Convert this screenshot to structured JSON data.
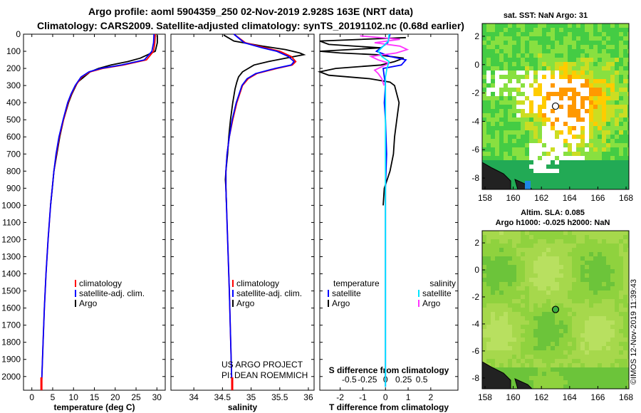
{
  "title_line1": "Argo profile: aoml 5904359_250 02-Nov-2019 2.928S 163E (NRT data)",
  "title_line2": "Climatology: CARS2009. Satellite-adjusted climatology: synTS_20191102.nc (0.68d earlier)",
  "sst_title": "sat. SST: NaN Argo: 31",
  "sla_title_1": "Altim. SLA: 0.085",
  "sla_title_2": "Argo h1000: -0.025 h2000: NaN",
  "timestamp": "©IMOS 12-Nov-2019 11:39:43",
  "credit_1": "US ARGO PROJECT",
  "credit_2": "PI: DEAN ROEMMICH",
  "depth_ticks": [
    "0",
    "100",
    "200",
    "300",
    "400",
    "500",
    "600",
    "700",
    "800",
    "900",
    "1000",
    "1100",
    "1200",
    "1300",
    "1400",
    "1500",
    "1600",
    "1700",
    "1800",
    "1900",
    "2000"
  ],
  "colors": {
    "climatology": "#ff0000",
    "satellite": "#0000ff",
    "argo": "#000000",
    "salinity_satellite": "#00e5ff",
    "salinity_argo": "#ff33ff"
  },
  "chart_data": [
    {
      "type": "line",
      "id": "temperature",
      "xlabel": "temperature (deg C)",
      "ylabel": "depth",
      "xlim": [
        -2,
        32
      ],
      "ylim": [
        2080,
        0
      ],
      "x_ticks": [
        "0",
        "5",
        "10",
        "15",
        "20",
        "25",
        "30"
      ],
      "x_tick_values": [
        0,
        5,
        10,
        15,
        20,
        25,
        30
      ],
      "legend": [
        "climatology",
        "satellite-adj. clim.",
        "Argo"
      ],
      "series": [
        {
          "name": "climatology",
          "depth": [
            0,
            50,
            100,
            150,
            180,
            200,
            220,
            250,
            300,
            350,
            400,
            500,
            600,
            700,
            800,
            900,
            1000,
            1200,
            1400,
            1600,
            1800,
            2000,
            2060
          ],
          "values": [
            29.6,
            29.5,
            29.2,
            27.5,
            22,
            17,
            14,
            12,
            10.5,
            9.5,
            8.7,
            7.6,
            6.6,
            5.9,
            5.3,
            4.9,
            4.5,
            3.9,
            3.4,
            3.0,
            2.7,
            2.4,
            2.3
          ]
        },
        {
          "name": "satellite-adj. clim.",
          "depth": [
            0,
            50,
            100,
            150,
            180,
            200,
            220,
            250,
            300,
            350,
            400,
            500,
            600,
            700,
            800,
            900,
            1000,
            1200,
            1400,
            1600,
            1800,
            2000,
            2060
          ],
          "values": [
            29.3,
            29.2,
            28.8,
            27,
            21.5,
            16.5,
            13.7,
            11.8,
            10.4,
            9.4,
            8.6,
            7.5,
            6.5,
            5.8,
            5.3,
            4.9,
            4.5,
            3.9,
            3.4,
            3.0,
            2.7,
            2.4,
            2.3
          ]
        },
        {
          "name": "Argo",
          "depth": [
            5,
            50,
            100,
            140,
            160,
            180,
            200,
            220,
            240,
            260,
            280,
            300,
            350,
            400,
            450,
            500,
            600,
            700,
            800,
            900,
            1000
          ],
          "values": [
            30.1,
            30.1,
            29.6,
            26,
            23,
            19,
            16,
            14,
            13,
            12,
            11,
            10.6,
            9.6,
            8.8,
            8.2,
            7.6,
            6.7,
            6.0,
            5.3,
            4.9,
            4.5
          ]
        }
      ]
    },
    {
      "type": "line",
      "id": "salinity",
      "xlabel": "salinity",
      "ylabel": "depth",
      "xlim": [
        33.6,
        36.1
      ],
      "ylim": [
        2080,
        0
      ],
      "x_ticks": [
        "34",
        "34.5",
        "35",
        "35.5",
        "36"
      ],
      "x_tick_values": [
        34,
        34.5,
        35,
        35.5,
        36
      ],
      "legend": [
        "climatology",
        "satellite-adj. clim.",
        "Argo"
      ],
      "series": [
        {
          "name": "climatology",
          "depth": [
            0,
            50,
            80,
            100,
            130,
            160,
            180,
            200,
            230,
            260,
            300,
            400,
            500,
            600,
            700,
            800,
            900,
            1000,
            1200,
            1500,
            2000,
            2060
          ],
          "values": [
            34.7,
            34.9,
            35.25,
            35.5,
            35.7,
            35.78,
            35.72,
            35.45,
            35.1,
            34.95,
            34.85,
            34.75,
            34.68,
            34.62,
            34.58,
            34.56,
            34.56,
            34.57,
            34.59,
            34.62,
            34.66,
            34.67
          ]
        },
        {
          "name": "satellite-adj. clim.",
          "depth": [
            0,
            50,
            80,
            100,
            130,
            160,
            180,
            200,
            230,
            260,
            300,
            400,
            500,
            600,
            700,
            800,
            900,
            1000,
            1200,
            1500,
            2000,
            2060
          ],
          "values": [
            34.7,
            34.88,
            35.2,
            35.45,
            35.65,
            35.75,
            35.7,
            35.42,
            35.08,
            34.93,
            34.84,
            34.74,
            34.67,
            34.62,
            34.58,
            34.56,
            34.56,
            34.57,
            34.59,
            34.62,
            34.66,
            34.67
          ]
        },
        {
          "name": "Argo",
          "depth": [
            5,
            40,
            70,
            90,
            110,
            120,
            140,
            160,
            180,
            200,
            220,
            250,
            280,
            320,
            360,
            400,
            500,
            600,
            700,
            800,
            850,
            900,
            1000
          ],
          "values": [
            34.52,
            34.7,
            35.2,
            35.6,
            35.85,
            35.92,
            35.6,
            35.3,
            35.05,
            34.95,
            34.85,
            34.78,
            34.75,
            34.72,
            34.7,
            34.68,
            34.64,
            34.61,
            34.59,
            34.56,
            34.55,
            34.56,
            34.57
          ]
        }
      ]
    },
    {
      "type": "line",
      "id": "difference",
      "xlabel": "T difference from climatology",
      "xlabel2": "S difference from climatology",
      "xlim": [
        -2.9,
        3.2
      ],
      "ylim": [
        2080,
        0
      ],
      "x_ticks": [
        "-2",
        "-1",
        "0",
        "1",
        "2"
      ],
      "x_tick_values": [
        -2,
        -1,
        0,
        1,
        2
      ],
      "x2_ticks": [
        "-0.5",
        "-0.25",
        "0",
        "0.25",
        "0.5"
      ],
      "x2_tick_values": [
        -0.5,
        -0.25,
        0,
        0.25,
        0.5
      ],
      "legend_left_title": "temperature",
      "legend_right_title": "salinity",
      "legend": [
        "satellite",
        "Argo"
      ],
      "series": [
        {
          "name": "T satellite",
          "depth": [
            0,
            50,
            80,
            100,
            130,
            150,
            180,
            200,
            250,
            300,
            400,
            500,
            700,
            900,
            1000,
            1200,
            1600,
            2000,
            2060
          ],
          "values": [
            0.2,
            0.1,
            -0.2,
            -0.4,
            0.2,
            0.9,
            0.7,
            -0.1,
            -0.05,
            0,
            -0.05,
            0,
            0.05,
            0,
            0,
            0,
            0,
            0,
            0
          ]
        },
        {
          "name": "T Argo",
          "depth": [
            20,
            40,
            60,
            80,
            100,
            110,
            120,
            140,
            160,
            180,
            200,
            220,
            240,
            260,
            280,
            300,
            400,
            500,
            600,
            700,
            800,
            900,
            1000
          ],
          "values": [
            0.9,
            -2.9,
            -2.5,
            -0.2,
            -2.9,
            -2.0,
            -0.4,
            0.8,
            0.4,
            -0.2,
            -2.2,
            -2.9,
            -2.5,
            -0.7,
            0.2,
            0.4,
            0.6,
            0.5,
            0.4,
            0.35,
            0.2,
            -0.05,
            -0.1
          ]
        },
        {
          "name": "S satellite",
          "depth": [
            0,
            40,
            70,
            100,
            130,
            160,
            200,
            250,
            300,
            400,
            600,
            1000,
            1500,
            2000,
            2060
          ],
          "values": [
            0.05,
            0.04,
            -0.03,
            -0.1,
            -0.05,
            0.05,
            0.02,
            0,
            0,
            0,
            0,
            0,
            0,
            0,
            0
          ]
        },
        {
          "name": "S Argo",
          "depth": [
            10,
            30,
            50,
            70,
            90,
            110,
            130,
            150,
            170,
            190,
            210,
            230,
            260,
            300
          ],
          "values": [
            -0.35,
            0.2,
            -0.15,
            0.2,
            0.3,
            0.15,
            -0.2,
            -0.1,
            0.05,
            -0.05,
            -0.15,
            -0.1,
            -0.05,
            -0.02
          ]
        }
      ]
    },
    {
      "type": "heatmap",
      "id": "sst_map",
      "title": "sat. SST: NaN Argo: 31",
      "x_ticks": [
        "158",
        "160",
        "162",
        "164",
        "166",
        "168"
      ],
      "x_tick_values": [
        158,
        160,
        162,
        164,
        166,
        168
      ],
      "y_ticks": [
        "2",
        "0",
        "-2",
        "-4",
        "-6",
        "-8"
      ],
      "y_tick_values": [
        2,
        0,
        -2,
        -4,
        -6,
        -8
      ],
      "xlim": [
        157.8,
        168.2
      ],
      "ylim": [
        -8.8,
        2.9
      ],
      "argo_position": [
        163,
        -2.928
      ]
    },
    {
      "type": "heatmap",
      "id": "sla_map",
      "title": "Altim. SLA: 0.085",
      "x_ticks": [
        "158",
        "160",
        "162",
        "164",
        "166",
        "168"
      ],
      "x_tick_values": [
        158,
        160,
        162,
        164,
        166,
        168
      ],
      "y_ticks": [
        "2",
        "0",
        "-2",
        "-4",
        "-6",
        "-8"
      ],
      "y_tick_values": [
        2,
        0,
        -2,
        -4,
        -6,
        -8
      ],
      "xlim": [
        157.8,
        168.2
      ],
      "ylim": [
        -8.8,
        2.9
      ],
      "argo_position": [
        163,
        -2.928
      ]
    }
  ]
}
